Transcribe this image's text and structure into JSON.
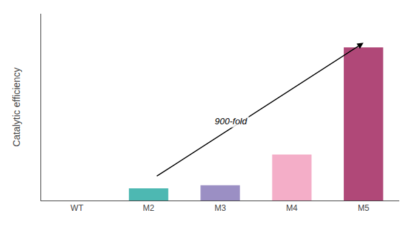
{
  "chart_data": {
    "type": "bar",
    "categories": [
      "WT",
      "M2",
      "M3",
      "M4",
      "M5"
    ],
    "values": [
      0,
      0.08,
      0.1,
      0.3,
      1.0
    ],
    "colors": [
      "#ffffff",
      "#4db8b2",
      "#9b8fc4",
      "#f4aec8",
      "#b04878"
    ],
    "ylabel": "Catalytic efficiency",
    "annotation": "900-fold",
    "ylim": [
      0,
      1.22
    ],
    "tick_labels": "x",
    "grid": false
  }
}
